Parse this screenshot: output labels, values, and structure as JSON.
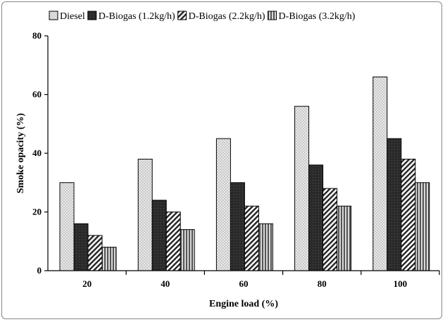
{
  "chart_data": {
    "type": "bar",
    "title": "",
    "xlabel": "Engine load (%)",
    "ylabel": "Smoke opacity (%)",
    "categories": [
      "20",
      "40",
      "60",
      "80",
      "100"
    ],
    "ylim": [
      0,
      80
    ],
    "yticks": [
      "0",
      "20",
      "40",
      "60",
      "80"
    ],
    "legend_position": "top",
    "grid": false,
    "series": [
      {
        "name": "Diesel",
        "values": [
          30,
          38,
          45,
          56,
          66
        ],
        "pattern": "dotted-light"
      },
      {
        "name": "D-Biogas (1.2kg/h)",
        "values": [
          16,
          24,
          30,
          36,
          45
        ],
        "pattern": "solid-dark"
      },
      {
        "name": "D-Biogas (2.2kg/h)",
        "values": [
          12,
          20,
          22,
          28,
          38
        ],
        "pattern": "diagonal-hatch"
      },
      {
        "name": "D-Biogas (3.2kg/h)",
        "values": [
          8,
          14,
          16,
          22,
          30
        ],
        "pattern": "vertical-hatch"
      }
    ]
  }
}
